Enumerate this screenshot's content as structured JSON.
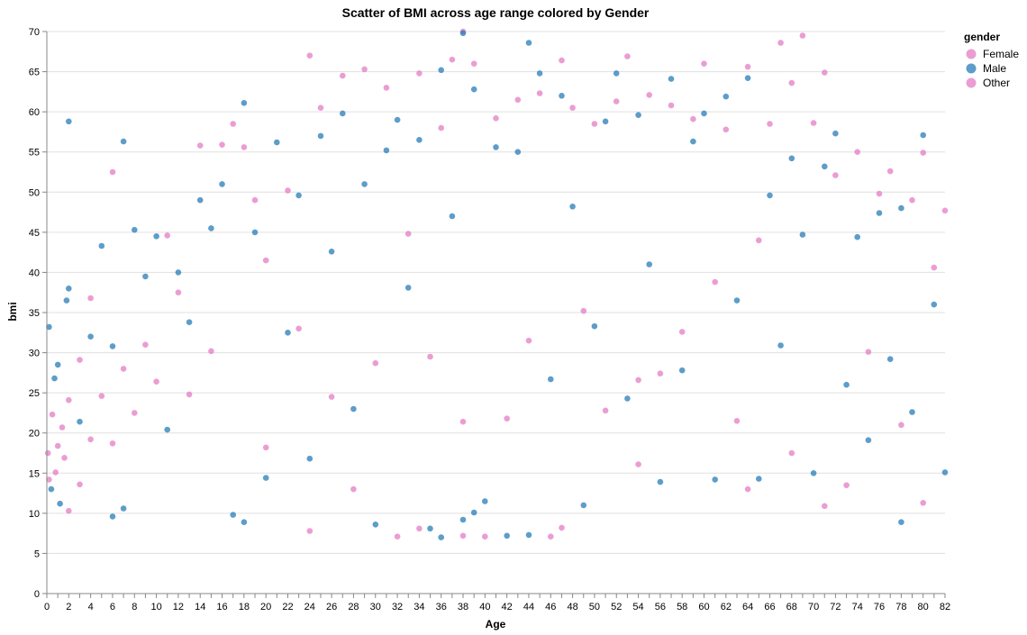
{
  "chart_data": {
    "type": "scatter",
    "title": "Scatter of BMI across age range colored by Gender",
    "xlabel": "Age",
    "ylabel": "bmi",
    "xlim": [
      0,
      82
    ],
    "ylim": [
      0,
      70
    ],
    "x_ticks": [
      0,
      2,
      4,
      6,
      8,
      10,
      12,
      14,
      16,
      18,
      20,
      22,
      24,
      26,
      28,
      30,
      32,
      34,
      36,
      38,
      40,
      42,
      44,
      46,
      48,
      50,
      52,
      54,
      56,
      58,
      60,
      62,
      64,
      66,
      68,
      70,
      72,
      74,
      76,
      78,
      80,
      82
    ],
    "y_ticks": [
      0,
      5,
      10,
      15,
      20,
      25,
      30,
      35,
      40,
      45,
      50,
      55,
      60,
      65,
      70
    ],
    "grid": true,
    "legend": {
      "title": "gender",
      "placement": "top-right",
      "entries": [
        "Female",
        "Male",
        "Other"
      ]
    },
    "colors": {
      "Female": "#e377c2",
      "Male": "#1f77b4",
      "Other": "#e377c2"
    },
    "series": [
      {
        "name": "Female",
        "points": [
          [
            0.1,
            17.5
          ],
          [
            0.2,
            14.2
          ],
          [
            0.5,
            22.3
          ],
          [
            0.8,
            15.1
          ],
          [
            1.0,
            18.4
          ],
          [
            1.4,
            20.7
          ],
          [
            1.6,
            16.9
          ],
          [
            2.0,
            10.3
          ],
          [
            2.0,
            24.1
          ],
          [
            3.0,
            29.1
          ],
          [
            3.0,
            13.6
          ],
          [
            4.0,
            36.8
          ],
          [
            4.0,
            19.2
          ],
          [
            5.0,
            24.6
          ],
          [
            6.0,
            18.7
          ],
          [
            6.0,
            52.5
          ],
          [
            7.0,
            28.0
          ],
          [
            8.0,
            22.5
          ],
          [
            9.0,
            31.0
          ],
          [
            10.0,
            26.4
          ],
          [
            11.0,
            44.6
          ],
          [
            12.0,
            37.5
          ],
          [
            13.0,
            24.8
          ],
          [
            14.0,
            55.8
          ],
          [
            15.0,
            30.2
          ],
          [
            16.0,
            55.9
          ],
          [
            17.0,
            58.5
          ],
          [
            18.0,
            55.6
          ],
          [
            19.0,
            49.0
          ],
          [
            20.0,
            41.5
          ],
          [
            20.0,
            18.2
          ],
          [
            22.0,
            50.2
          ],
          [
            23.0,
            33.0
          ],
          [
            24.0,
            67.0
          ],
          [
            24.0,
            7.8
          ],
          [
            25.0,
            60.5
          ],
          [
            26.0,
            24.5
          ],
          [
            27.0,
            64.5
          ],
          [
            28.0,
            13.0
          ],
          [
            29.0,
            65.3
          ],
          [
            30.0,
            28.7
          ],
          [
            31.0,
            63.0
          ],
          [
            32.0,
            7.1
          ],
          [
            33.0,
            44.8
          ],
          [
            34.0,
            64.8
          ],
          [
            34.0,
            8.1
          ],
          [
            35.0,
            29.5
          ],
          [
            36.0,
            58.0
          ],
          [
            37.0,
            66.5
          ],
          [
            38.0,
            70.0
          ],
          [
            38.0,
            7.2
          ],
          [
            39.0,
            66.0
          ],
          [
            40.0,
            7.1
          ],
          [
            41.0,
            59.2
          ],
          [
            42.0,
            21.8
          ],
          [
            43.0,
            61.5
          ],
          [
            44.0,
            31.5
          ],
          [
            45.0,
            62.3
          ],
          [
            46.0,
            7.1
          ],
          [
            47.0,
            66.4
          ],
          [
            47.0,
            8.2
          ],
          [
            48.0,
            60.5
          ],
          [
            49.0,
            35.2
          ],
          [
            50.0,
            58.5
          ],
          [
            51.0,
            22.8
          ],
          [
            52.0,
            61.3
          ],
          [
            53.0,
            66.9
          ],
          [
            54.0,
            16.1
          ],
          [
            55.0,
            62.1
          ],
          [
            56.0,
            27.4
          ],
          [
            57.0,
            60.8
          ],
          [
            58.0,
            32.6
          ],
          [
            59.0,
            59.1
          ],
          [
            60.0,
            66.0
          ],
          [
            61.0,
            38.8
          ],
          [
            62.0,
            57.8
          ],
          [
            63.0,
            21.5
          ],
          [
            64.0,
            65.6
          ],
          [
            64.0,
            13.0
          ],
          [
            65.0,
            44.0
          ],
          [
            66.0,
            58.5
          ],
          [
            67.0,
            68.6
          ],
          [
            68.0,
            63.6
          ],
          [
            68.0,
            17.5
          ],
          [
            69.0,
            69.5
          ],
          [
            70.0,
            58.6
          ],
          [
            71.0,
            64.9
          ],
          [
            71.0,
            10.9
          ],
          [
            72.0,
            52.1
          ],
          [
            73.0,
            13.5
          ],
          [
            74.0,
            55.0
          ],
          [
            75.0,
            30.1
          ],
          [
            76.0,
            49.8
          ],
          [
            77.0,
            52.6
          ],
          [
            78.0,
            21.0
          ],
          [
            79.0,
            49.0
          ],
          [
            80.0,
            54.9
          ],
          [
            80.0,
            11.3
          ],
          [
            81.0,
            40.6
          ],
          [
            82.0,
            47.7
          ]
        ]
      },
      {
        "name": "Male",
        "points": [
          [
            0.2,
            33.2
          ],
          [
            0.4,
            13.0
          ],
          [
            0.7,
            26.8
          ],
          [
            1.0,
            28.5
          ],
          [
            1.2,
            11.2
          ],
          [
            1.8,
            36.5
          ],
          [
            2.0,
            38.0
          ],
          [
            2.0,
            58.8
          ],
          [
            3.0,
            21.4
          ],
          [
            4.0,
            32.0
          ],
          [
            5.0,
            43.3
          ],
          [
            6.0,
            9.6
          ],
          [
            6.0,
            30.8
          ],
          [
            7.0,
            56.3
          ],
          [
            7.0,
            10.6
          ],
          [
            8.0,
            45.3
          ],
          [
            9.0,
            39.5
          ],
          [
            10.0,
            44.5
          ],
          [
            11.0,
            20.4
          ],
          [
            12.0,
            40.0
          ],
          [
            13.0,
            33.8
          ],
          [
            14.0,
            49.0
          ],
          [
            15.0,
            45.5
          ],
          [
            16.0,
            51.0
          ],
          [
            17.0,
            9.8
          ],
          [
            18.0,
            61.1
          ],
          [
            18.0,
            8.9
          ],
          [
            19.0,
            45.0
          ],
          [
            20.0,
            14.4
          ],
          [
            21.0,
            56.2
          ],
          [
            22.0,
            32.5
          ],
          [
            23.0,
            49.6
          ],
          [
            24.0,
            16.8
          ],
          [
            25.0,
            57.0
          ],
          [
            26.0,
            42.6
          ],
          [
            27.0,
            59.8
          ],
          [
            28.0,
            23.0
          ],
          [
            29.0,
            51.0
          ],
          [
            30.0,
            8.6
          ],
          [
            31.0,
            55.2
          ],
          [
            32.0,
            59.0
          ],
          [
            33.0,
            38.1
          ],
          [
            34.0,
            56.5
          ],
          [
            35.0,
            8.1
          ],
          [
            36.0,
            65.2
          ],
          [
            36.0,
            7.0
          ],
          [
            37.0,
            47.0
          ],
          [
            38.0,
            69.8
          ],
          [
            38.0,
            9.2
          ],
          [
            39.0,
            62.8
          ],
          [
            39.0,
            10.1
          ],
          [
            40.0,
            11.5
          ],
          [
            41.0,
            55.6
          ],
          [
            42.0,
            7.2
          ],
          [
            43.0,
            55.0
          ],
          [
            44.0,
            68.6
          ],
          [
            44.0,
            7.3
          ],
          [
            45.0,
            64.8
          ],
          [
            46.0,
            26.7
          ],
          [
            47.0,
            62.0
          ],
          [
            48.0,
            48.2
          ],
          [
            49.0,
            11.0
          ],
          [
            50.0,
            33.3
          ],
          [
            51.0,
            58.8
          ],
          [
            52.0,
            64.8
          ],
          [
            53.0,
            24.3
          ],
          [
            54.0,
            59.6
          ],
          [
            55.0,
            41.0
          ],
          [
            56.0,
            13.9
          ],
          [
            57.0,
            64.1
          ],
          [
            58.0,
            27.8
          ],
          [
            59.0,
            56.3
          ],
          [
            60.0,
            59.8
          ],
          [
            61.0,
            14.2
          ],
          [
            62.0,
            61.9
          ],
          [
            63.0,
            36.5
          ],
          [
            64.0,
            64.2
          ],
          [
            65.0,
            14.3
          ],
          [
            66.0,
            49.6
          ],
          [
            67.0,
            30.9
          ],
          [
            68.0,
            54.2
          ],
          [
            69.0,
            44.7
          ],
          [
            70.0,
            15.0
          ],
          [
            71.0,
            53.2
          ],
          [
            72.0,
            57.3
          ],
          [
            73.0,
            26.0
          ],
          [
            74.0,
            44.4
          ],
          [
            75.0,
            19.1
          ],
          [
            76.0,
            47.4
          ],
          [
            77.0,
            29.2
          ],
          [
            78.0,
            8.9
          ],
          [
            78.0,
            48.0
          ],
          [
            79.0,
            22.6
          ],
          [
            80.0,
            57.1
          ],
          [
            81.0,
            36.0
          ],
          [
            82.0,
            15.1
          ]
        ]
      },
      {
        "name": "Other",
        "points": [
          [
            38.0,
            21.4
          ],
          [
            54.0,
            26.6
          ]
        ]
      }
    ]
  }
}
